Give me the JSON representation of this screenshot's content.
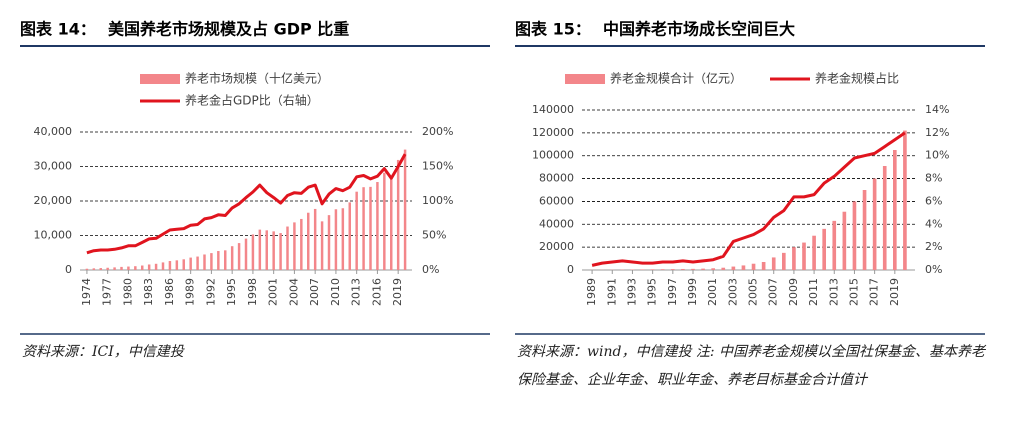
{
  "chart_data": [
    {
      "type": "bar",
      "label": "图表 14：",
      "title": "美国养老市场规模及占 GDP 比重",
      "source": "资料来源：ICI，中信建投",
      "x": [
        1974,
        1975,
        1976,
        1977,
        1978,
        1979,
        1980,
        1981,
        1982,
        1983,
        1984,
        1985,
        1986,
        1987,
        1988,
        1989,
        1990,
        1991,
        1992,
        1993,
        1994,
        1995,
        1996,
        1997,
        1998,
        1999,
        2000,
        2001,
        2002,
        2003,
        2004,
        2005,
        2006,
        2007,
        2008,
        2009,
        2010,
        2011,
        2012,
        2013,
        2014,
        2015,
        2016,
        2017,
        2018,
        2019,
        2020
      ],
      "xlim": [
        1973,
        2021
      ],
      "xticks": [
        1974,
        1977,
        1980,
        1983,
        1986,
        1989,
        1992,
        1995,
        1998,
        2001,
        2004,
        2007,
        2010,
        2013,
        2016,
        2019
      ],
      "series": [
        {
          "name": "养老市场规模（十亿美元）",
          "type": "bar",
          "color": "#f3868a",
          "values": [
            370,
            480,
            560,
            650,
            760,
            900,
            1000,
            1100,
            1300,
            1600,
            1800,
            2200,
            2600,
            2800,
            3100,
            3600,
            3900,
            4500,
            4900,
            5500,
            5700,
            6900,
            7800,
            9100,
            10300,
            11700,
            11500,
            11200,
            10700,
            12600,
            13800,
            14800,
            16600,
            17700,
            14100,
            15900,
            17600,
            17900,
            19600,
            22700,
            24000,
            24100,
            25500,
            28200,
            27200,
            31900,
            34900
          ]
        },
        {
          "name": "养老金占GDP比（右轴）",
          "type": "line",
          "axis": "y2",
          "color": "#e0141e",
          "values": [
            25,
            28,
            29,
            29,
            30,
            32,
            35,
            35,
            40,
            45,
            46,
            52,
            58,
            59,
            60,
            65,
            66,
            74,
            76,
            80,
            79,
            90,
            96,
            105,
            113,
            123,
            112,
            105,
            97,
            108,
            112,
            111,
            120,
            123,
            96,
            110,
            118,
            115,
            120,
            135,
            137,
            132,
            136,
            147,
            133,
            150,
            168
          ]
        }
      ],
      "ylim": [
        0,
        40000
      ],
      "yticks": [
        0,
        {
          "value": 10000,
          "label": "10,000"
        },
        {
          "value": 20000,
          "label": "20,000"
        },
        {
          "value": 30000,
          "label": "30,000"
        },
        {
          "value": 40000,
          "label": "40,000"
        }
      ],
      "y2lim": [
        0,
        200
      ],
      "y2ticks": [
        {
          "value": 0,
          "label": "0%"
        },
        {
          "value": 50,
          "label": "50%"
        },
        {
          "value": 100,
          "label": "100%"
        },
        {
          "value": 150,
          "label": "150%"
        },
        {
          "value": 200,
          "label": "200%"
        }
      ],
      "grid": true,
      "legend": "top"
    },
    {
      "type": "bar",
      "label": "图表 15：",
      "title": "中国养老市场成长空间巨大",
      "source": "资料来源：wind，中信建投 注: 中国养老金规模以全国社保基金、基本养老保险基金、企业年金、职业年金、养老目标基金合计值计",
      "x": [
        1989,
        1990,
        1991,
        1992,
        1993,
        1994,
        1995,
        1996,
        1997,
        1998,
        1999,
        2000,
        2001,
        2002,
        2003,
        2004,
        2005,
        2006,
        2007,
        2008,
        2009,
        2010,
        2011,
        2012,
        2013,
        2014,
        2015,
        2016,
        2017,
        2018,
        2019,
        2020
      ],
      "xlim": [
        1988,
        2021
      ],
      "xticks": [
        1989,
        1991,
        1993,
        1995,
        1997,
        1999,
        2001,
        2003,
        2005,
        2007,
        2009,
        2011,
        2013,
        2015,
        2017,
        2019
      ],
      "series": [
        {
          "name": "养老金规模合计（亿元）",
          "type": "bar",
          "color": "#f3868a",
          "values": [
            100,
            150,
            200,
            300,
            400,
            500,
            600,
            700,
            800,
            900,
            1000,
            1200,
            1500,
            2000,
            3000,
            4000,
            5500,
            7000,
            11000,
            15000,
            20000,
            24000,
            30000,
            36000,
            43000,
            51000,
            60000,
            70000,
            80000,
            91000,
            105000,
            122000
          ]
        },
        {
          "name": "养老金规模占比",
          "type": "line",
          "axis": "y2",
          "color": "#e0141e",
          "values": [
            0.4,
            0.6,
            0.7,
            0.8,
            0.7,
            0.6,
            0.6,
            0.7,
            0.7,
            0.8,
            0.7,
            0.8,
            0.9,
            1.2,
            2.5,
            2.8,
            3.1,
            3.6,
            4.6,
            5.2,
            6.4,
            6.4,
            6.6,
            7.6,
            8.2,
            9.0,
            9.8,
            10.0,
            10.2,
            10.8,
            11.4,
            12.0
          ]
        }
      ],
      "ylim": [
        0,
        140000
      ],
      "yticks": [
        0,
        20000,
        40000,
        60000,
        80000,
        100000,
        120000,
        140000
      ],
      "y2lim": [
        0,
        14
      ],
      "y2ticks": [
        {
          "value": 0,
          "label": "0%"
        },
        {
          "value": 2,
          "label": "2%"
        },
        {
          "value": 4,
          "label": "4%"
        },
        {
          "value": 6,
          "label": "6%"
        },
        {
          "value": 8,
          "label": "8%"
        },
        {
          "value": 10,
          "label": "10%"
        },
        {
          "value": 12,
          "label": "12%"
        },
        {
          "value": 14,
          "label": "14%"
        }
      ],
      "grid": true,
      "legend": "top"
    }
  ]
}
